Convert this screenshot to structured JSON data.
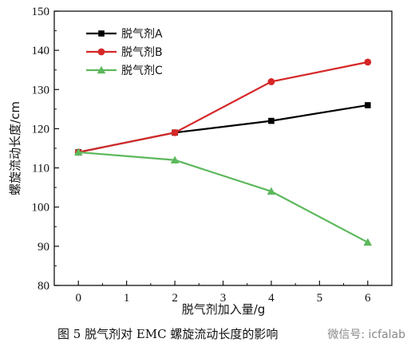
{
  "chart_data": {
    "type": "line",
    "x": [
      0,
      2,
      4,
      6
    ],
    "series": [
      {
        "name": "脱气剂A",
        "values": [
          114,
          119,
          122,
          126
        ],
        "color": "#000000",
        "marker": "square"
      },
      {
        "name": "脱气剂B",
        "values": [
          114,
          119,
          132,
          137
        ],
        "color": "#d62728",
        "marker": "circle"
      },
      {
        "name": "脱气剂C",
        "values": [
          114,
          112,
          104,
          91
        ],
        "color": "#5cb85c",
        "marker": "triangle"
      }
    ],
    "xlabel": "脱气剂加入量/g",
    "ylabel": "螺旋流动长度/cm",
    "xlim": [
      -0.5,
      6.5
    ],
    "ylim": [
      80,
      150
    ],
    "xticks": [
      "0",
      "1",
      "2",
      "3",
      "4",
      "5",
      "6"
    ],
    "yticks": [
      "80",
      "90",
      "100",
      "110",
      "120",
      "130",
      "140",
      "150"
    ],
    "legend_position": "top-left",
    "grid": false
  },
  "caption": "图 5   脱气剂对 EMC 螺旋流动长度的影响",
  "watermark": "微信号: icfalab"
}
